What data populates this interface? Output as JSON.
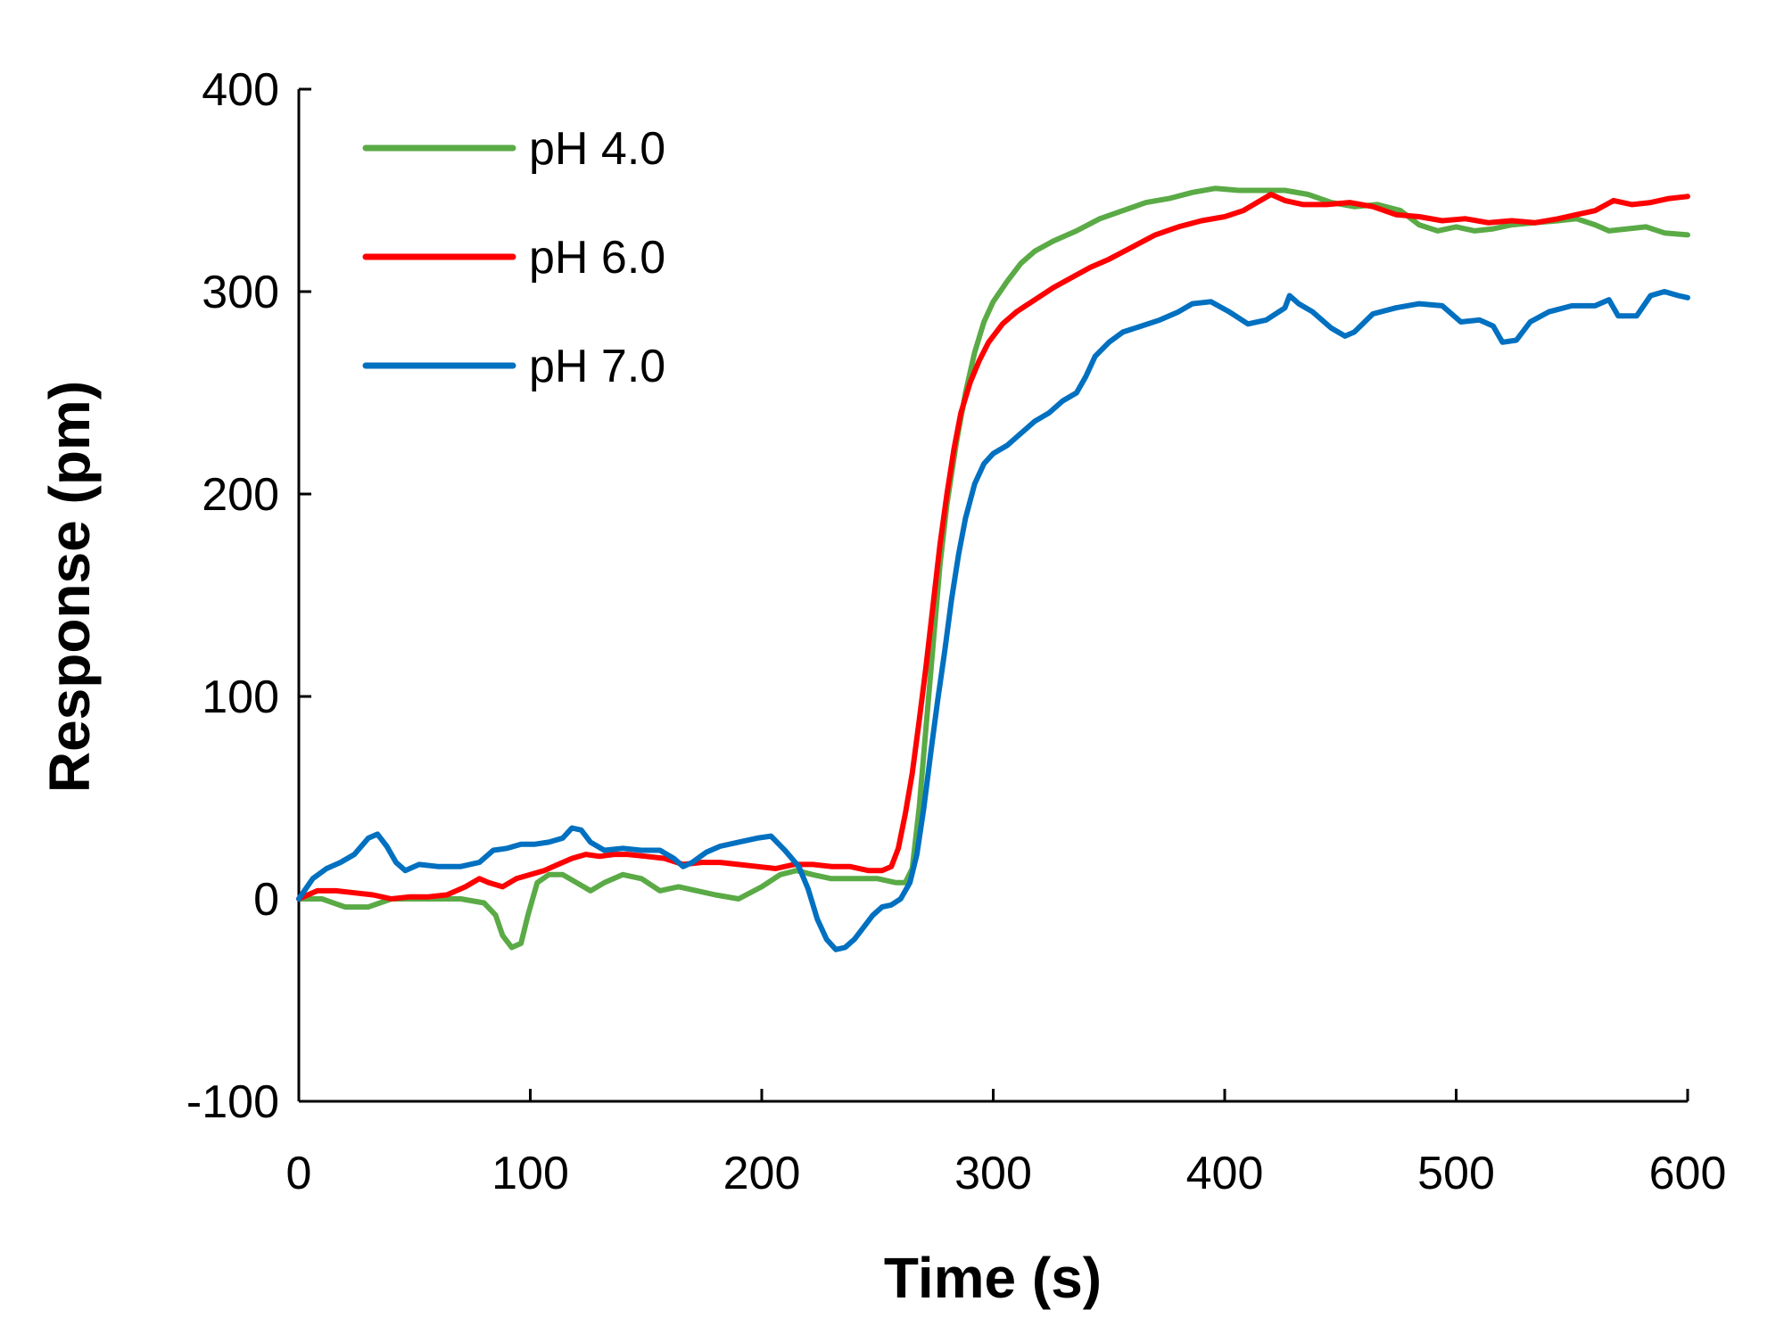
{
  "chart_data": {
    "type": "line",
    "title": "",
    "xlabel": "Time (s)",
    "ylabel": "Response (pm)",
    "xlim": [
      0,
      600
    ],
    "ylim": [
      -100,
      400
    ],
    "x_ticks": [
      0,
      100,
      200,
      300,
      400,
      500,
      600
    ],
    "y_ticks": [
      400,
      300,
      200,
      100,
      0,
      -100
    ],
    "grid": false,
    "legend_position": "top-left",
    "series": [
      {
        "name": "pH 4.0",
        "color": "#5aaa46",
        "points": [
          [
            0,
            0
          ],
          [
            10,
            0
          ],
          [
            20,
            -4
          ],
          [
            30,
            -4
          ],
          [
            40,
            0
          ],
          [
            50,
            0
          ],
          [
            60,
            0
          ],
          [
            70,
            0
          ],
          [
            80,
            -2
          ],
          [
            85,
            -8
          ],
          [
            88,
            -18
          ],
          [
            92,
            -24
          ],
          [
            96,
            -22
          ],
          [
            99,
            -8
          ],
          [
            103,
            8
          ],
          [
            108,
            12
          ],
          [
            114,
            12
          ],
          [
            120,
            8
          ],
          [
            126,
            4
          ],
          [
            132,
            8
          ],
          [
            140,
            12
          ],
          [
            148,
            10
          ],
          [
            156,
            4
          ],
          [
            164,
            6
          ],
          [
            172,
            4
          ],
          [
            180,
            2
          ],
          [
            190,
            0
          ],
          [
            200,
            6
          ],
          [
            208,
            12
          ],
          [
            215,
            14
          ],
          [
            222,
            12
          ],
          [
            230,
            10
          ],
          [
            240,
            10
          ],
          [
            250,
            10
          ],
          [
            258,
            8
          ],
          [
            262,
            8
          ],
          [
            265,
            15
          ],
          [
            268,
            45
          ],
          [
            271,
            85
          ],
          [
            274,
            125
          ],
          [
            277,
            165
          ],
          [
            280,
            195
          ],
          [
            284,
            225
          ],
          [
            288,
            250
          ],
          [
            292,
            270
          ],
          [
            296,
            285
          ],
          [
            300,
            295
          ],
          [
            306,
            305
          ],
          [
            312,
            314
          ],
          [
            318,
            320
          ],
          [
            326,
            325
          ],
          [
            336,
            330
          ],
          [
            346,
            336
          ],
          [
            356,
            340
          ],
          [
            366,
            344
          ],
          [
            376,
            346
          ],
          [
            386,
            349
          ],
          [
            396,
            351
          ],
          [
            406,
            350
          ],
          [
            416,
            350
          ],
          [
            426,
            350
          ],
          [
            436,
            348
          ],
          [
            446,
            344
          ],
          [
            456,
            342
          ],
          [
            466,
            343
          ],
          [
            476,
            340
          ],
          [
            484,
            333
          ],
          [
            492,
            330
          ],
          [
            500,
            332
          ],
          [
            508,
            330
          ],
          [
            516,
            331
          ],
          [
            524,
            333
          ],
          [
            534,
            334
          ],
          [
            544,
            335
          ],
          [
            552,
            336
          ],
          [
            560,
            333
          ],
          [
            566,
            330
          ],
          [
            574,
            331
          ],
          [
            582,
            332
          ],
          [
            590,
            329
          ],
          [
            600,
            328
          ]
        ]
      },
      {
        "name": "pH 6.0",
        "color": "#ff0000",
        "points": [
          [
            0,
            0
          ],
          [
            8,
            4
          ],
          [
            16,
            4
          ],
          [
            24,
            3
          ],
          [
            32,
            2
          ],
          [
            40,
            0
          ],
          [
            48,
            1
          ],
          [
            56,
            1
          ],
          [
            64,
            2
          ],
          [
            72,
            6
          ],
          [
            78,
            10
          ],
          [
            82,
            8
          ],
          [
            88,
            6
          ],
          [
            94,
            10
          ],
          [
            100,
            12
          ],
          [
            106,
            14
          ],
          [
            112,
            17
          ],
          [
            118,
            20
          ],
          [
            124,
            22
          ],
          [
            130,
            21
          ],
          [
            136,
            22
          ],
          [
            142,
            22
          ],
          [
            150,
            21
          ],
          [
            158,
            20
          ],
          [
            166,
            17
          ],
          [
            174,
            18
          ],
          [
            182,
            18
          ],
          [
            190,
            17
          ],
          [
            198,
            16
          ],
          [
            206,
            15
          ],
          [
            214,
            17
          ],
          [
            222,
            17
          ],
          [
            230,
            16
          ],
          [
            238,
            16
          ],
          [
            246,
            14
          ],
          [
            252,
            14
          ],
          [
            256,
            16
          ],
          [
            259,
            25
          ],
          [
            262,
            42
          ],
          [
            265,
            62
          ],
          [
            268,
            88
          ],
          [
            271,
            115
          ],
          [
            274,
            145
          ],
          [
            277,
            175
          ],
          [
            280,
            200
          ],
          [
            283,
            222
          ],
          [
            286,
            240
          ],
          [
            290,
            255
          ],
          [
            294,
            266
          ],
          [
            298,
            275
          ],
          [
            304,
            284
          ],
          [
            310,
            290
          ],
          [
            318,
            296
          ],
          [
            326,
            302
          ],
          [
            334,
            307
          ],
          [
            342,
            312
          ],
          [
            350,
            316
          ],
          [
            360,
            322
          ],
          [
            370,
            328
          ],
          [
            380,
            332
          ],
          [
            390,
            335
          ],
          [
            400,
            337
          ],
          [
            408,
            340
          ],
          [
            414,
            344
          ],
          [
            420,
            348
          ],
          [
            426,
            345
          ],
          [
            434,
            343
          ],
          [
            444,
            343
          ],
          [
            454,
            344
          ],
          [
            464,
            342
          ],
          [
            474,
            338
          ],
          [
            484,
            337
          ],
          [
            494,
            335
          ],
          [
            504,
            336
          ],
          [
            514,
            334
          ],
          [
            524,
            335
          ],
          [
            534,
            334
          ],
          [
            544,
            336
          ],
          [
            552,
            338
          ],
          [
            560,
            340
          ],
          [
            568,
            345
          ],
          [
            576,
            343
          ],
          [
            584,
            344
          ],
          [
            592,
            346
          ],
          [
            600,
            347
          ]
        ]
      },
      {
        "name": "pH 7.0",
        "color": "#0070c0",
        "points": [
          [
            0,
            0
          ],
          [
            6,
            10
          ],
          [
            12,
            15
          ],
          [
            18,
            18
          ],
          [
            24,
            22
          ],
          [
            30,
            30
          ],
          [
            34,
            32
          ],
          [
            38,
            26
          ],
          [
            42,
            18
          ],
          [
            46,
            14
          ],
          [
            52,
            17
          ],
          [
            60,
            16
          ],
          [
            70,
            16
          ],
          [
            78,
            18
          ],
          [
            84,
            24
          ],
          [
            90,
            25
          ],
          [
            96,
            27
          ],
          [
            102,
            27
          ],
          [
            108,
            28
          ],
          [
            114,
            30
          ],
          [
            118,
            35
          ],
          [
            122,
            34
          ],
          [
            126,
            28
          ],
          [
            132,
            24
          ],
          [
            140,
            25
          ],
          [
            148,
            24
          ],
          [
            156,
            24
          ],
          [
            162,
            20
          ],
          [
            166,
            16
          ],
          [
            170,
            18
          ],
          [
            176,
            23
          ],
          [
            182,
            26
          ],
          [
            190,
            28
          ],
          [
            198,
            30
          ],
          [
            204,
            31
          ],
          [
            210,
            24
          ],
          [
            216,
            16
          ],
          [
            220,
            5
          ],
          [
            224,
            -10
          ],
          [
            228,
            -20
          ],
          [
            232,
            -25
          ],
          [
            236,
            -24
          ],
          [
            240,
            -20
          ],
          [
            244,
            -14
          ],
          [
            248,
            -8
          ],
          [
            252,
            -4
          ],
          [
            256,
            -3
          ],
          [
            260,
            0
          ],
          [
            264,
            8
          ],
          [
            267,
            22
          ],
          [
            270,
            45
          ],
          [
            273,
            72
          ],
          [
            276,
            98
          ],
          [
            279,
            122
          ],
          [
            282,
            148
          ],
          [
            285,
            170
          ],
          [
            288,
            188
          ],
          [
            292,
            205
          ],
          [
            296,
            215
          ],
          [
            300,
            220
          ],
          [
            306,
            224
          ],
          [
            312,
            230
          ],
          [
            318,
            236
          ],
          [
            324,
            240
          ],
          [
            330,
            246
          ],
          [
            336,
            250
          ],
          [
            340,
            258
          ],
          [
            344,
            268
          ],
          [
            350,
            275
          ],
          [
            356,
            280
          ],
          [
            364,
            283
          ],
          [
            372,
            286
          ],
          [
            380,
            290
          ],
          [
            386,
            294
          ],
          [
            394,
            295
          ],
          [
            402,
            290
          ],
          [
            410,
            284
          ],
          [
            418,
            286
          ],
          [
            426,
            292
          ],
          [
            428,
            298
          ],
          [
            432,
            294
          ],
          [
            438,
            290
          ],
          [
            446,
            282
          ],
          [
            452,
            278
          ],
          [
            456,
            280
          ],
          [
            464,
            289
          ],
          [
            474,
            292
          ],
          [
            484,
            294
          ],
          [
            494,
            293
          ],
          [
            502,
            285
          ],
          [
            510,
            286
          ],
          [
            516,
            283
          ],
          [
            520,
            275
          ],
          [
            526,
            276
          ],
          [
            532,
            285
          ],
          [
            540,
            290
          ],
          [
            550,
            293
          ],
          [
            560,
            293
          ],
          [
            566,
            296
          ],
          [
            570,
            288
          ],
          [
            578,
            288
          ],
          [
            584,
            298
          ],
          [
            590,
            300
          ],
          [
            596,
            298
          ],
          [
            600,
            297
          ]
        ]
      }
    ]
  }
}
